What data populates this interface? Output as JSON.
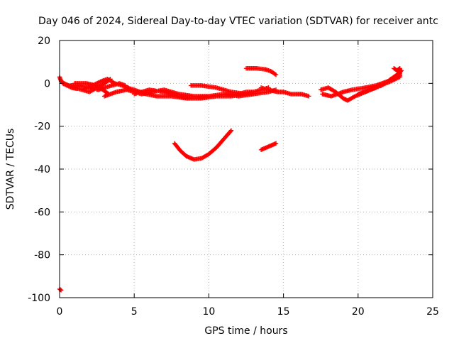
{
  "chart_data": {
    "type": "scatter",
    "title": "Day 046 of 2024, Sidereal Day-to-day VTEC variation (SDTVAR) for receiver antc",
    "xlabel": "GPS time / hours",
    "ylabel": "SDTVAR / TECUs",
    "xlim": [
      0,
      25
    ],
    "ylim": [
      -100,
      20
    ],
    "xticks": [
      0,
      5,
      10,
      15,
      20,
      25
    ],
    "yticks": [
      -100,
      -80,
      -60,
      -40,
      -20,
      0,
      20
    ],
    "grid": true,
    "marker": "+",
    "marker_color": "#ff0000",
    "tracks": [
      [
        [
          0,
          3
        ],
        [
          0.1,
          1
        ],
        [
          0.3,
          0
        ],
        [
          0.6,
          -1
        ],
        [
          1.0,
          -2
        ],
        [
          1.5,
          -3
        ],
        [
          2.0,
          -4
        ],
        [
          2.5,
          -2
        ],
        [
          3.0,
          0
        ],
        [
          3.4,
          2
        ]
      ],
      [
        [
          0.2,
          0
        ],
        [
          0.8,
          -2
        ],
        [
          1.5,
          -3
        ],
        [
          2.2,
          -1
        ],
        [
          2.8,
          1
        ],
        [
          3.2,
          2
        ],
        [
          3.7,
          0
        ],
        [
          4.2,
          -1
        ],
        [
          4.6,
          -2
        ]
      ],
      [
        [
          0.5,
          -1
        ],
        [
          1.2,
          -1
        ],
        [
          2.0,
          -2
        ],
        [
          2.6,
          -3
        ],
        [
          3.0,
          -2
        ],
        [
          3.5,
          -1
        ],
        [
          4.0,
          0
        ],
        [
          4.4,
          -1
        ]
      ],
      [
        [
          1.0,
          0
        ],
        [
          1.8,
          0
        ],
        [
          2.4,
          -1
        ],
        [
          2.9,
          -3
        ],
        [
          3.3,
          -5
        ]
      ],
      [
        [
          3.0,
          -6
        ],
        [
          3.8,
          -4
        ],
        [
          4.5,
          -3
        ],
        [
          5.0,
          -4
        ],
        [
          5.5,
          -5
        ],
        [
          6.2,
          -4
        ],
        [
          7.0,
          -3
        ],
        [
          8.0,
          -5
        ],
        [
          9.0,
          -6
        ],
        [
          10.0,
          -6
        ],
        [
          11.0,
          -5
        ],
        [
          12.0,
          -5
        ],
        [
          12.5,
          -4
        ],
        [
          13.0,
          -4
        ]
      ],
      [
        [
          4.5,
          -2
        ],
        [
          5.0,
          -3
        ],
        [
          5.8,
          -5
        ],
        [
          6.5,
          -6
        ],
        [
          7.5,
          -6
        ],
        [
          8.5,
          -7
        ],
        [
          9.5,
          -7
        ],
        [
          10.5,
          -6
        ],
        [
          11.5,
          -6
        ],
        [
          12.5,
          -5
        ],
        [
          13.5,
          -3
        ],
        [
          14.0,
          -2
        ]
      ],
      [
        [
          5.0,
          -5
        ],
        [
          6.0,
          -3
        ],
        [
          7.0,
          -4
        ],
        [
          8.0,
          -6
        ],
        [
          9.0,
          -7
        ],
        [
          10.0,
          -6
        ],
        [
          11.0,
          -5
        ],
        [
          12.0,
          -6
        ],
        [
          13.0,
          -5
        ],
        [
          14.0,
          -4
        ],
        [
          14.5,
          -3
        ]
      ],
      [
        [
          8.8,
          -1
        ],
        [
          9.5,
          -1
        ],
        [
          10.5,
          -2
        ],
        [
          11.5,
          -4
        ],
        [
          12.5,
          -5
        ],
        [
          13.0,
          -5
        ]
      ],
      [
        [
          13.5,
          -2
        ],
        [
          14.0,
          -3
        ],
        [
          14.6,
          -4
        ],
        [
          15.0,
          -4
        ],
        [
          15.5,
          -5
        ],
        [
          16.2,
          -5
        ],
        [
          16.7,
          -6
        ]
      ],
      [
        [
          12.5,
          7
        ],
        [
          13.2,
          7
        ],
        [
          13.8,
          6.5
        ],
        [
          14.2,
          5.5
        ],
        [
          14.5,
          4
        ]
      ],
      [
        [
          17.5,
          -3
        ],
        [
          18.0,
          -2
        ],
        [
          18.5,
          -4
        ],
        [
          19.0,
          -7
        ],
        [
          19.3,
          -8
        ],
        [
          19.8,
          -6
        ],
        [
          20.5,
          -4
        ],
        [
          21.5,
          -1
        ],
        [
          22.2,
          1
        ],
        [
          22.8,
          3
        ]
      ],
      [
        [
          17.6,
          -5
        ],
        [
          18.2,
          -6
        ],
        [
          19.0,
          -4
        ],
        [
          19.6,
          -3
        ],
        [
          20.5,
          -2
        ],
        [
          21.2,
          -1
        ],
        [
          22.0,
          1
        ],
        [
          22.6,
          4
        ],
        [
          22.8,
          5
        ]
      ],
      [
        [
          20.0,
          -5
        ],
        [
          20.8,
          -3
        ],
        [
          21.6,
          -1
        ],
        [
          22.2,
          2
        ],
        [
          22.7,
          4
        ],
        [
          22.9,
          6
        ]
      ],
      [
        [
          22.4,
          7
        ],
        [
          22.6,
          6
        ],
        [
          22.8,
          7
        ],
        [
          22.8,
          3
        ]
      ],
      [
        [
          7.7,
          -28
        ],
        [
          8.1,
          -31.5
        ],
        [
          8.5,
          -34
        ],
        [
          9.0,
          -35.5
        ],
        [
          9.5,
          -35
        ],
        [
          10.0,
          -33
        ],
        [
          10.5,
          -30
        ],
        [
          11.0,
          -26
        ],
        [
          11.5,
          -22
        ]
      ],
      [
        [
          13.5,
          -31
        ],
        [
          14.0,
          -29.5
        ],
        [
          14.5,
          -28
        ]
      ],
      [
        [
          0.0,
          -96
        ],
        [
          0.1,
          -96.5
        ]
      ]
    ]
  }
}
